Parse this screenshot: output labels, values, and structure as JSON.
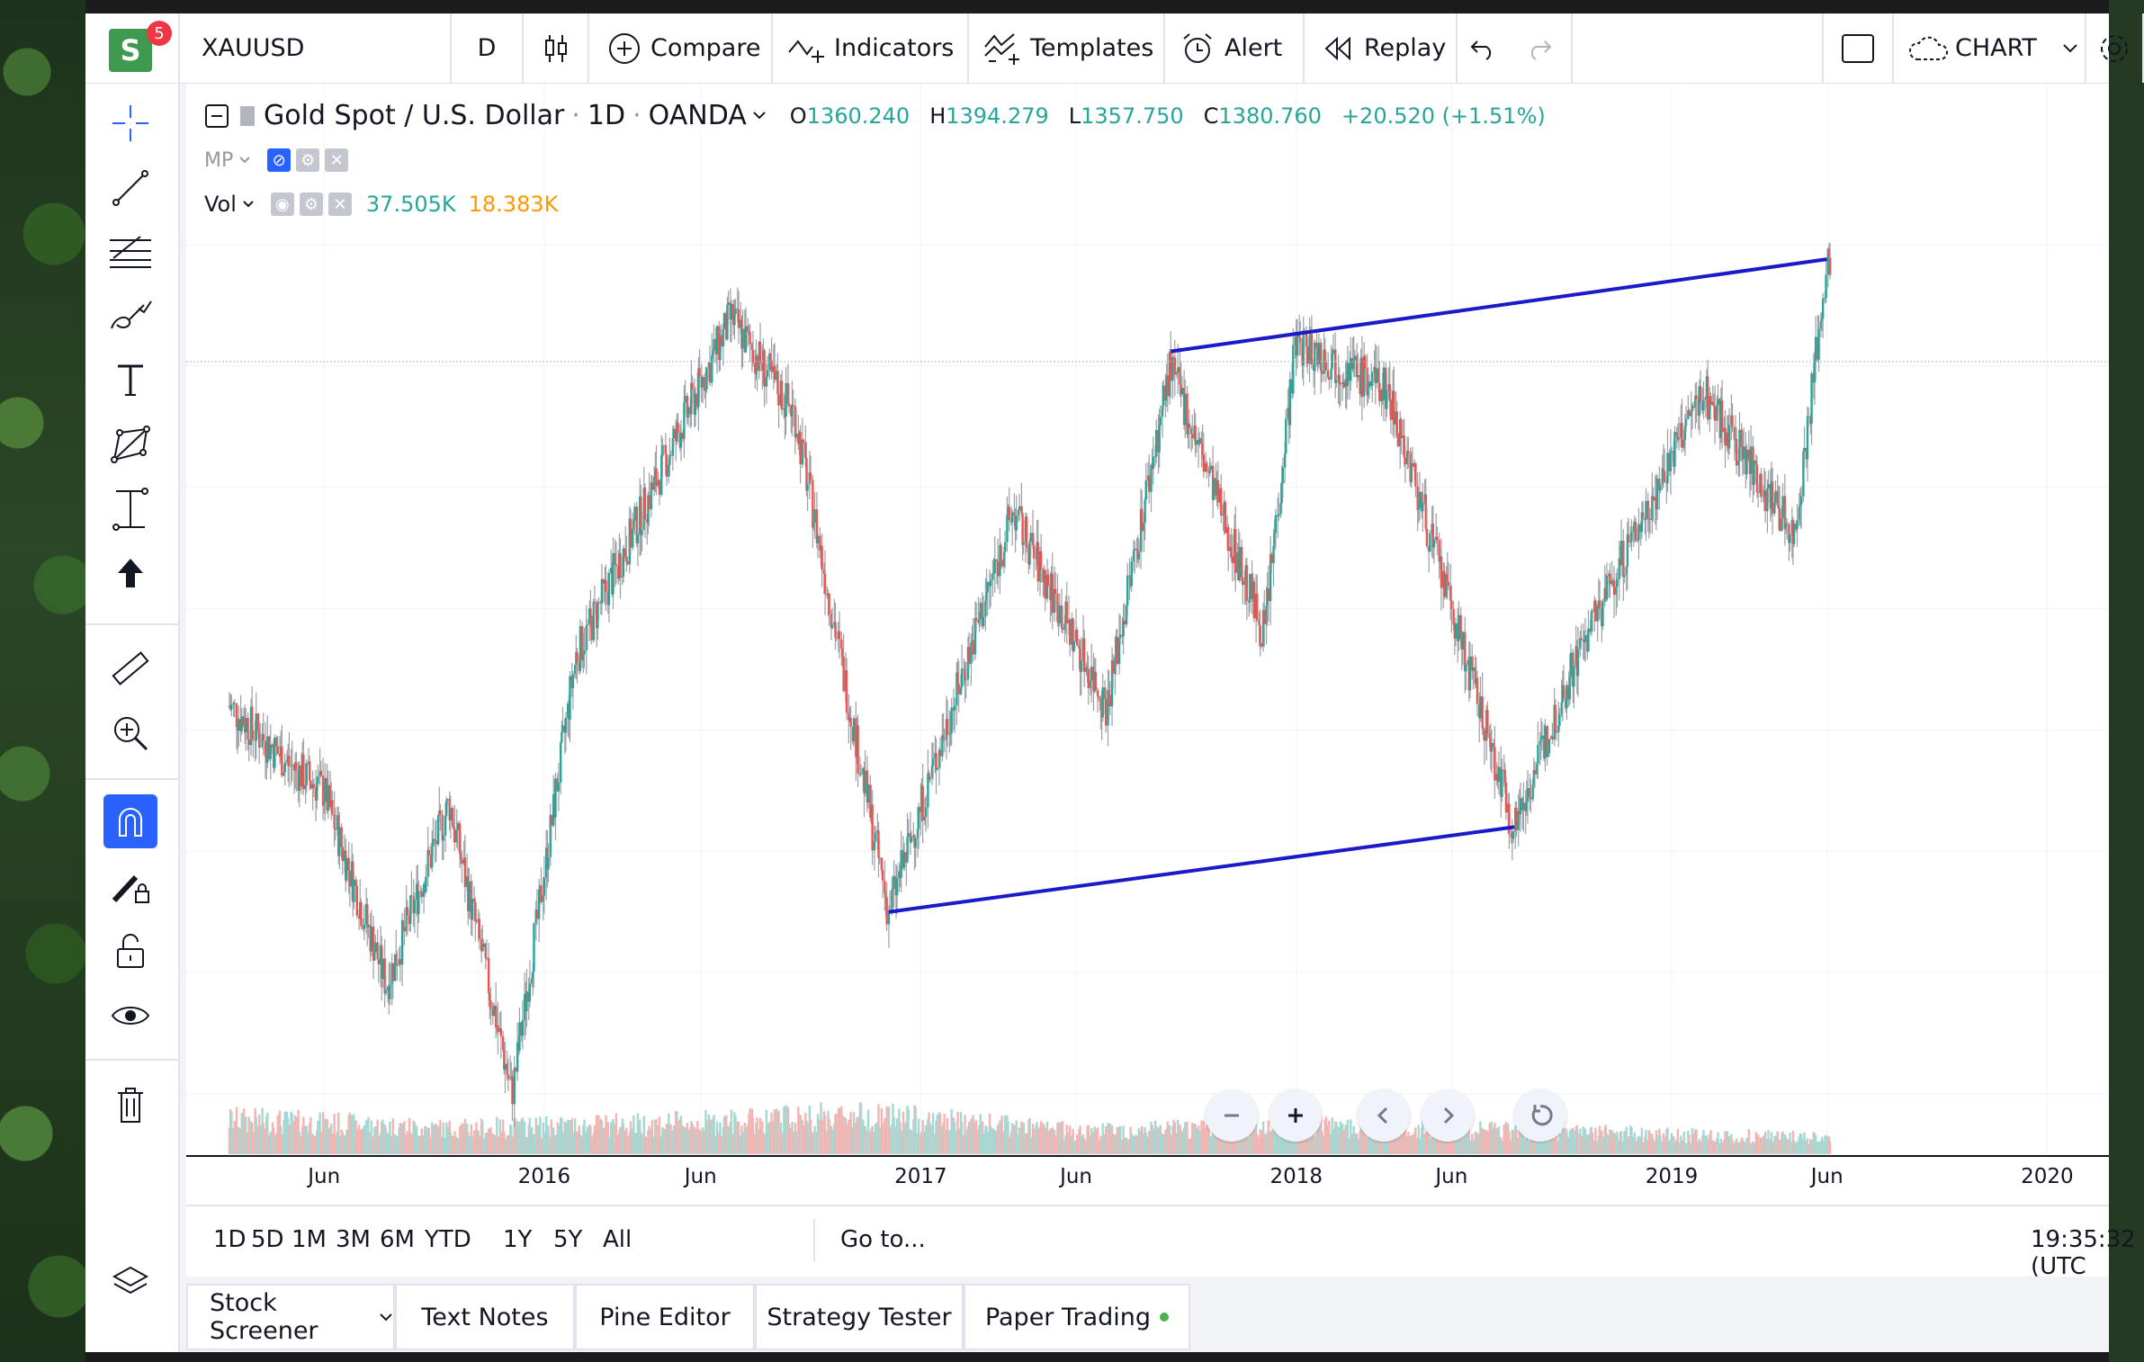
{
  "header": {
    "logo_letter": "S",
    "notification_count": "5",
    "symbol": "XAUUSD",
    "interval": "D",
    "compare": "Compare",
    "indicators": "Indicators",
    "templates": "Templates",
    "alert": "Alert",
    "replay": "Replay",
    "chart_name": "CHART"
  },
  "legend": {
    "title": "Gold Spot / U.S. Dollar",
    "sep1": "·",
    "timeframe": "1D",
    "sep2": "·",
    "source": "OANDA",
    "o_label": "O",
    "o": "1360.240",
    "h_label": "H",
    "h": "1394.279",
    "l_label": "L",
    "l": "1357.750",
    "c_label": "C",
    "c": "1380.760",
    "change": "+20.520 (+1.51%)",
    "mp": "MP",
    "vol": "Vol",
    "vol1": "37.505K",
    "vol2": "18.383K"
  },
  "colors": {
    "up": "#26a69a",
    "down": "#ef5350",
    "trendline": "#1a1ac8",
    "vol_orange": "#ff9800",
    "accent": "#2962ff"
  },
  "chart_data": {
    "type": "candlestick",
    "symbol": "XAUUSD",
    "x_ticks": [
      "Jun",
      "2016",
      "Jun",
      "2017",
      "Jun",
      "2018",
      "Jun",
      "2019",
      "Jun",
      "2020"
    ],
    "last_bar": {
      "open": 1360.24,
      "high": 1394.279,
      "low": 1357.75,
      "close": 1380.76,
      "change": 20.52,
      "change_pct": 1.51
    },
    "price_path": [
      {
        "date": "2015-03",
        "close": 1210
      },
      {
        "date": "2015-05",
        "close": 1185
      },
      {
        "date": "2015-06",
        "close": 1175
      },
      {
        "date": "2015-08",
        "close": 1095
      },
      {
        "date": "2015-10",
        "close": 1170
      },
      {
        "date": "2015-12",
        "close": 1050
      },
      {
        "date": "2016-02",
        "close": 1230
      },
      {
        "date": "2016-07",
        "close": 1370
      },
      {
        "date": "2016-09",
        "close": 1330
      },
      {
        "date": "2016-12",
        "close": 1125
      },
      {
        "date": "2017-04",
        "close": 1290
      },
      {
        "date": "2017-07",
        "close": 1210
      },
      {
        "date": "2017-09",
        "close": 1350
      },
      {
        "date": "2017-12",
        "close": 1240
      },
      {
        "date": "2018-01",
        "close": 1360
      },
      {
        "date": "2018-04",
        "close": 1340
      },
      {
        "date": "2018-08",
        "close": 1160
      },
      {
        "date": "2018-10",
        "close": 1230
      },
      {
        "date": "2019-02",
        "close": 1340
      },
      {
        "date": "2019-05",
        "close": 1280
      },
      {
        "date": "2019-06",
        "close": 1390
      }
    ],
    "trendlines": [
      {
        "start": {
          "date": "2017-09",
          "price": 1356
        },
        "end": {
          "date": "2019-06",
          "price": 1394
        }
      },
      {
        "start": {
          "date": "2016-12",
          "price": 1125
        },
        "end": {
          "date": "2018-08",
          "price": 1160
        }
      }
    ],
    "volume_path": [
      {
        "date": "2015-03",
        "volume": 30
      },
      {
        "date": "2015-10",
        "volume": 22
      },
      {
        "date": "2016-07",
        "volume": 28
      },
      {
        "date": "2016-11",
        "volume": 34
      },
      {
        "date": "2017-06",
        "volume": 20
      },
      {
        "date": "2018-02",
        "volume": 24
      },
      {
        "date": "2018-08",
        "volume": 20
      },
      {
        "date": "2019-06",
        "volume": 14
      }
    ]
  },
  "range_bar": {
    "ranges": [
      "1D",
      "5D",
      "1M",
      "3M",
      "6M",
      "YTD",
      "1Y",
      "5Y",
      "All"
    ],
    "goto": "Go to...",
    "clock": "19:35:32 (UTC"
  },
  "bottom_tabs": [
    "Stock Screener",
    "Text Notes",
    "Pine Editor",
    "Strategy Tester",
    "Paper Trading"
  ]
}
